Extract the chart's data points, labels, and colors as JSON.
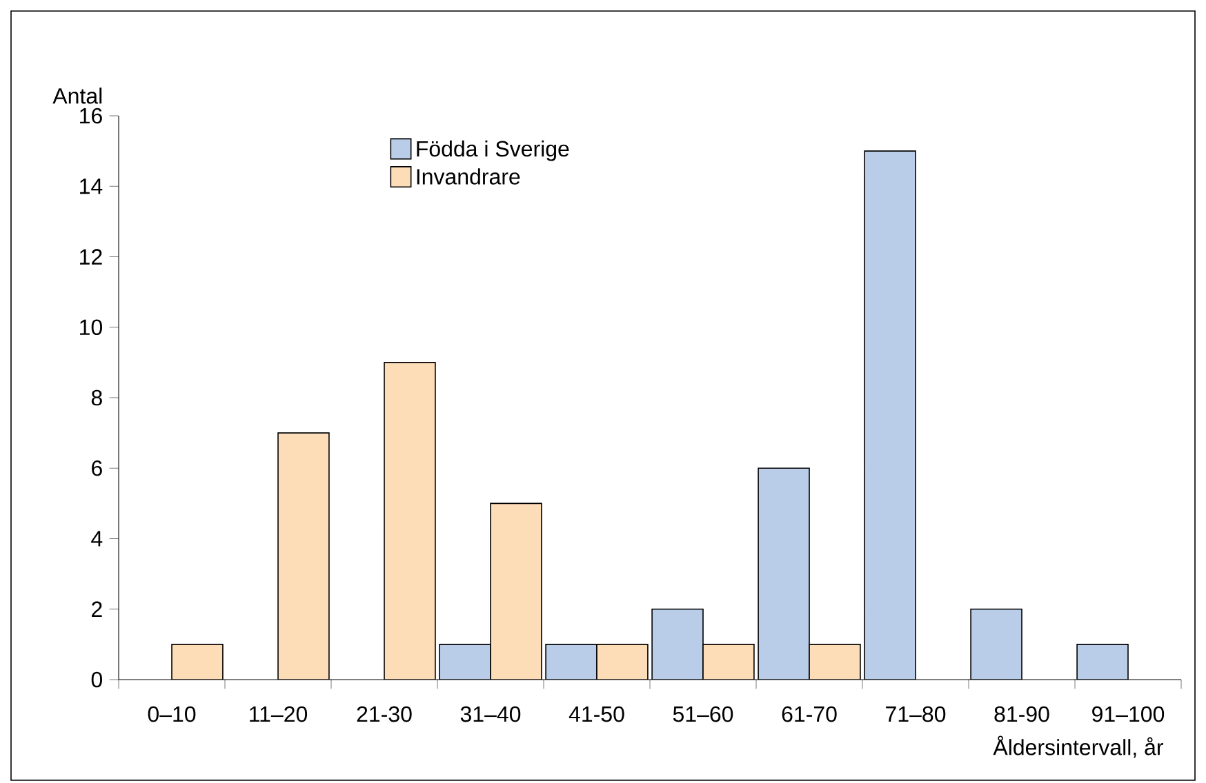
{
  "chart_data": {
    "type": "bar",
    "xlabel": "Åldersintervall, år",
    "ylabel": "Antal",
    "categories": [
      "0–10",
      "11–20",
      "21-30",
      "31–40",
      "41-50",
      "51–60",
      "61-70",
      "71–80",
      "81-90",
      "91–100"
    ],
    "series": [
      {
        "name": "Födda i Sverige",
        "color": "#b9cde8",
        "values": [
          0,
          0,
          0,
          1,
          1,
          2,
          6,
          15,
          2,
          1
        ]
      },
      {
        "name": "Invandrare",
        "color": "#fddcb8",
        "values": [
          1,
          7,
          9,
          5,
          1,
          1,
          1,
          0,
          0,
          0
        ]
      }
    ],
    "ylim": [
      0,
      16
    ],
    "yticks": [
      0,
      2,
      4,
      6,
      8,
      10,
      12,
      14,
      16
    ],
    "legend": "top left"
  }
}
